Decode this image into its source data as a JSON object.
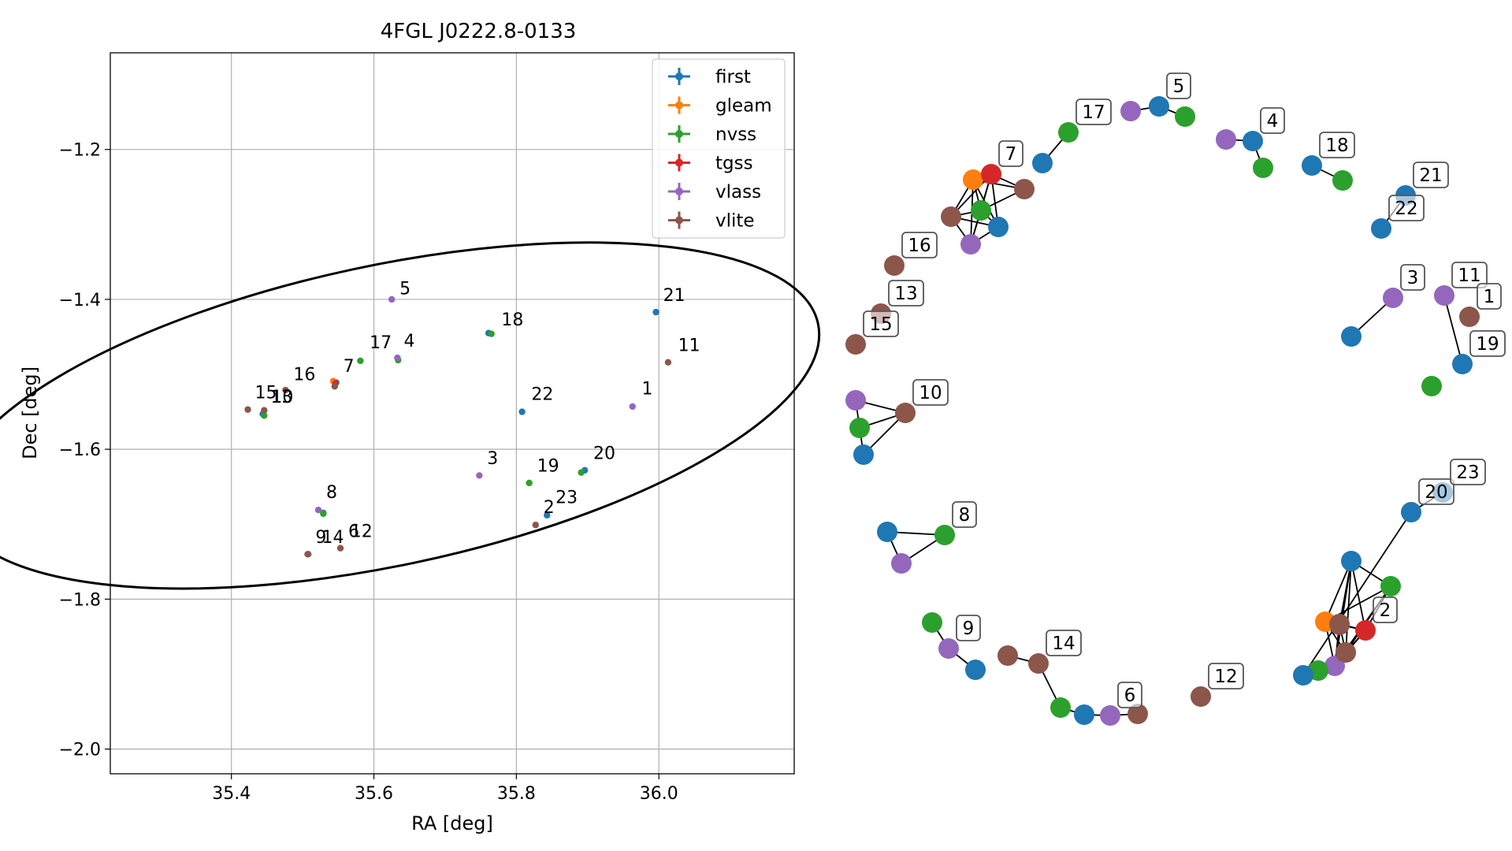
{
  "chart_data": [
    {
      "type": "scatter",
      "title": "4FGL J0222.8-0133",
      "xlabel": "RA [deg]",
      "ylabel": "Dec [deg]",
      "xlim": [
        35.23,
        36.19
      ],
      "ylim": [
        -2.033,
        -1.071
      ],
      "xticks": [
        35.4,
        35.6,
        35.8,
        36.0
      ],
      "xtick_labels": [
        "35.4",
        "35.6",
        "35.8",
        "36.0"
      ],
      "yticks": [
        -1.2,
        -1.4,
        -1.6,
        -1.8,
        -2.0
      ],
      "ytick_labels": [
        "−1.2",
        "−1.4",
        "−1.6",
        "−1.8",
        "−2.0"
      ],
      "grid": true,
      "legend_position": "top-right",
      "colors": {
        "first": "#1f77b4",
        "gleam": "#ff7f0e",
        "nvss": "#2ca02c",
        "tgss": "#d62728",
        "vlass": "#9467bd",
        "vlite": "#8c564b"
      },
      "series": [
        {
          "name": "first",
          "points": [
            [
              35.996,
              -1.417
            ],
            [
              35.808,
              -1.55
            ],
            [
              35.843,
              -1.688
            ],
            [
              35.896,
              -1.628
            ],
            [
              35.547,
              -1.511
            ],
            [
              35.444,
              -1.553
            ],
            [
              35.529,
              -1.685
            ],
            [
              35.761,
              -1.445
            ]
          ]
        },
        {
          "name": "gleam",
          "points": [
            [
              35.543,
              -1.509
            ]
          ]
        },
        {
          "name": "nvss",
          "points": [
            [
              35.765,
              -1.446
            ],
            [
              35.581,
              -1.482
            ],
            [
              35.634,
              -1.481
            ],
            [
              35.818,
              -1.645
            ],
            [
              35.891,
              -1.631
            ],
            [
              35.529,
              -1.686
            ],
            [
              35.446,
              -1.555
            ]
          ]
        },
        {
          "name": "tgss",
          "points": [
            [
              35.546,
              -1.512
            ]
          ]
        },
        {
          "name": "vlass",
          "points": [
            [
              35.625,
              -1.4
            ],
            [
              35.633,
              -1.478
            ],
            [
              35.963,
              -1.543
            ],
            [
              35.748,
              -1.635
            ],
            [
              35.522,
              -1.681
            ],
            [
              35.508,
              -1.74
            ]
          ]
        },
        {
          "name": "vlite",
          "points": [
            [
              36.013,
              -1.484
            ],
            [
              35.476,
              -1.521
            ],
            [
              35.545,
              -1.516
            ],
            [
              35.446,
              -1.548
            ],
            [
              35.423,
              -1.547
            ],
            [
              35.827,
              -1.701
            ],
            [
              35.553,
              -1.732
            ],
            [
              35.507,
              -1.74
            ]
          ]
        }
      ],
      "ellipse": {
        "center": [
          35.617,
          -1.555
        ],
        "rx": 0.62,
        "ry": 0.2,
        "angle_deg": 12
      },
      "annotations": [
        {
          "text": "5",
          "x": 35.636,
          "y": -1.393
        },
        {
          "text": "21",
          "x": 36.006,
          "y": -1.402
        },
        {
          "text": "18",
          "x": 35.779,
          "y": -1.435
        },
        {
          "text": "17",
          "x": 35.594,
          "y": -1.465
        },
        {
          "text": "4",
          "x": 35.642,
          "y": -1.463
        },
        {
          "text": "11",
          "x": 36.027,
          "y": -1.469
        },
        {
          "text": "7",
          "x": 35.557,
          "y": -1.497
        },
        {
          "text": "16",
          "x": 35.487,
          "y": -1.508
        },
        {
          "text": "1",
          "x": 35.976,
          "y": -1.527
        },
        {
          "text": "22",
          "x": 35.821,
          "y": -1.534
        },
        {
          "text": "15",
          "x": 35.433,
          "y": -1.532
        },
        {
          "text": "13",
          "x": 35.455,
          "y": -1.538
        },
        {
          "text": "10",
          "x": 35.456,
          "y": -1.538
        },
        {
          "text": "20",
          "x": 35.908,
          "y": -1.613
        },
        {
          "text": "3",
          "x": 35.759,
          "y": -1.62
        },
        {
          "text": "19",
          "x": 35.829,
          "y": -1.63
        },
        {
          "text": "23",
          "x": 35.855,
          "y": -1.672
        },
        {
          "text": "2",
          "x": 35.838,
          "y": -1.685
        },
        {
          "text": "8",
          "x": 35.533,
          "y": -1.665
        },
        {
          "text": "6",
          "x": 35.564,
          "y": -1.717
        },
        {
          "text": "12",
          "x": 35.567,
          "y": -1.717
        },
        {
          "text": "9",
          "x": 35.518,
          "y": -1.725
        },
        {
          "text": "14",
          "x": 35.527,
          "y": -1.725
        }
      ]
    },
    {
      "type": "network",
      "nodes": [
        {
          "id": "n1",
          "catalog": "vlass",
          "label": "11"
        },
        {
          "id": "n2",
          "catalog": "vlite",
          "label": "1"
        },
        {
          "id": "n3",
          "catalog": "first",
          "label": "19"
        },
        {
          "id": "n4",
          "catalog": "nvss",
          "label": ""
        },
        {
          "id": "n5",
          "catalog": "vlass",
          "label": "3"
        },
        {
          "id": "n6",
          "catalog": "first",
          "label": ""
        },
        {
          "id": "n7",
          "catalog": "first",
          "label": "21"
        },
        {
          "id": "n8",
          "catalog": "first",
          "label": "22"
        },
        {
          "id": "n9",
          "catalog": "first",
          "label": "18"
        },
        {
          "id": "n10",
          "catalog": "nvss",
          "label": ""
        },
        {
          "id": "n11",
          "catalog": "vlass",
          "label": ""
        },
        {
          "id": "n12",
          "catalog": "first",
          "label": "4"
        },
        {
          "id": "n13",
          "catalog": "nvss",
          "label": ""
        },
        {
          "id": "n14",
          "catalog": "vlass",
          "label": ""
        },
        {
          "id": "n15",
          "catalog": "first",
          "label": "5"
        },
        {
          "id": "n16",
          "catalog": "nvss",
          "label": ""
        },
        {
          "id": "n17",
          "catalog": "nvss",
          "label": "17"
        },
        {
          "id": "n18",
          "catalog": "first",
          "label": ""
        },
        {
          "id": "n19",
          "catalog": "gleam",
          "label": ""
        },
        {
          "id": "n20",
          "catalog": "tgss",
          "label": "7"
        },
        {
          "id": "n21",
          "catalog": "vlite",
          "label": ""
        },
        {
          "id": "n22",
          "catalog": "vlite",
          "label": ""
        },
        {
          "id": "n23",
          "catalog": "nvss",
          "label": ""
        },
        {
          "id": "n24",
          "catalog": "first",
          "label": ""
        },
        {
          "id": "n25",
          "catalog": "vlass",
          "label": ""
        },
        {
          "id": "n26",
          "catalog": "vlite",
          "label": "16"
        },
        {
          "id": "n27",
          "catalog": "vlite",
          "label": "13"
        },
        {
          "id": "n28",
          "catalog": "vlite",
          "label": "15"
        },
        {
          "id": "n29",
          "catalog": "vlass",
          "label": ""
        },
        {
          "id": "n30",
          "catalog": "vlite",
          "label": "10"
        },
        {
          "id": "n31",
          "catalog": "nvss",
          "label": ""
        },
        {
          "id": "n32",
          "catalog": "first",
          "label": ""
        },
        {
          "id": "n33",
          "catalog": "first",
          "label": ""
        },
        {
          "id": "n34",
          "catalog": "nvss",
          "label": "8"
        },
        {
          "id": "n35",
          "catalog": "vlass",
          "label": ""
        },
        {
          "id": "n36",
          "catalog": "nvss",
          "label": ""
        },
        {
          "id": "n37",
          "catalog": "vlass",
          "label": "9"
        },
        {
          "id": "n38",
          "catalog": "first",
          "label": ""
        },
        {
          "id": "n39",
          "catalog": "vlite",
          "label": ""
        },
        {
          "id": "n40",
          "catalog": "vlite",
          "label": "14"
        },
        {
          "id": "n41",
          "catalog": "nvss",
          "label": ""
        },
        {
          "id": "n42",
          "catalog": "first",
          "label": ""
        },
        {
          "id": "n43",
          "catalog": "vlass",
          "label": "6"
        },
        {
          "id": "n44",
          "catalog": "vlite",
          "label": ""
        },
        {
          "id": "n45",
          "catalog": "vlite",
          "label": "12"
        },
        {
          "id": "n46",
          "catalog": "first",
          "label": ""
        },
        {
          "id": "n47",
          "catalog": "nvss",
          "label": ""
        },
        {
          "id": "n48",
          "catalog": "vlass",
          "label": ""
        },
        {
          "id": "n49",
          "catalog": "vlite",
          "label": ""
        },
        {
          "id": "n50",
          "catalog": "gleam",
          "label": ""
        },
        {
          "id": "n51",
          "catalog": "vlite",
          "label": ""
        },
        {
          "id": "n52",
          "catalog": "tgss",
          "label": "2"
        },
        {
          "id": "n53",
          "catalog": "vlite",
          "label": ""
        },
        {
          "id": "n54",
          "catalog": "vlite",
          "label": ""
        },
        {
          "id": "n55",
          "catalog": "nvss",
          "label": ""
        },
        {
          "id": "n56",
          "catalog": "first",
          "label": ""
        },
        {
          "id": "n57",
          "catalog": "first",
          "label": "20"
        },
        {
          "id": "n58",
          "catalog": "first",
          "label": "23"
        }
      ],
      "edges": [
        [
          "n1",
          "n3"
        ],
        [
          "n5",
          "n6"
        ],
        [
          "n7",
          "n8"
        ],
        [
          "n9",
          "n10"
        ],
        [
          "n11",
          "n12"
        ],
        [
          "n12",
          "n13"
        ],
        [
          "n14",
          "n15"
        ],
        [
          "n15",
          "n16"
        ],
        [
          "n17",
          "n18"
        ],
        [
          "n19",
          "n20"
        ],
        [
          "n19",
          "n21"
        ],
        [
          "n19",
          "n22"
        ],
        [
          "n19",
          "n23"
        ],
        [
          "n19",
          "n24"
        ],
        [
          "n19",
          "n25"
        ],
        [
          "n20",
          "n21"
        ],
        [
          "n20",
          "n22"
        ],
        [
          "n20",
          "n23"
        ],
        [
          "n20",
          "n24"
        ],
        [
          "n20",
          "n25"
        ],
        [
          "n21",
          "n23"
        ],
        [
          "n22",
          "n23"
        ],
        [
          "n22",
          "n24"
        ],
        [
          "n22",
          "n25"
        ],
        [
          "n23",
          "n24"
        ],
        [
          "n23",
          "n25"
        ],
        [
          "n24",
          "n25"
        ],
        [
          "n29",
          "n30"
        ],
        [
          "n29",
          "n31"
        ],
        [
          "n30",
          "n31"
        ],
        [
          "n30",
          "n32"
        ],
        [
          "n31",
          "n32"
        ],
        [
          "n33",
          "n34"
        ],
        [
          "n33",
          "n35"
        ],
        [
          "n34",
          "n35"
        ],
        [
          "n36",
          "n37"
        ],
        [
          "n37",
          "n38"
        ],
        [
          "n39",
          "n40"
        ],
        [
          "n40",
          "n41"
        ],
        [
          "n41",
          "n42"
        ],
        [
          "n42",
          "n43"
        ],
        [
          "n43",
          "n44"
        ],
        [
          "n46",
          "n47"
        ],
        [
          "n46",
          "n48"
        ],
        [
          "n46",
          "n49"
        ],
        [
          "n46",
          "n50"
        ],
        [
          "n46",
          "n51"
        ],
        [
          "n46",
          "n52"
        ],
        [
          "n47",
          "n48"
        ],
        [
          "n47",
          "n50"
        ],
        [
          "n47",
          "n51"
        ],
        [
          "n47",
          "n52"
        ],
        [
          "n48",
          "n50"
        ],
        [
          "n48",
          "n51"
        ],
        [
          "n48",
          "n52"
        ],
        [
          "n48",
          "n53"
        ],
        [
          "n48",
          "n54"
        ],
        [
          "n49",
          "n50"
        ],
        [
          "n50",
          "n51"
        ],
        [
          "n50",
          "n52"
        ],
        [
          "n51",
          "n52"
        ],
        [
          "n51",
          "n53"
        ],
        [
          "n51",
          "n54"
        ],
        [
          "n52",
          "n53"
        ],
        [
          "n52",
          "n54"
        ],
        [
          "n55",
          "n56"
        ],
        [
          "n56",
          "n57"
        ],
        [
          "n57",
          "n58"
        ]
      ]
    }
  ]
}
